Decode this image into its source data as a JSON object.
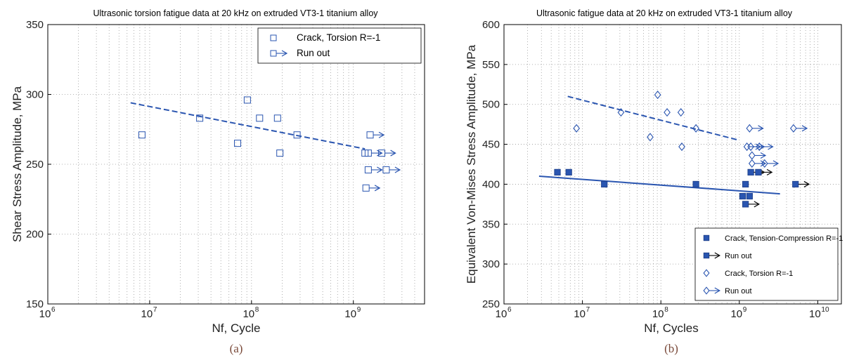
{
  "colors": {
    "series": "#2a55b0",
    "run_arrow_b": "#000000",
    "grid": "#9a9a9a"
  },
  "chart_data": [
    {
      "type": "scatter",
      "panel_label": "(a)",
      "title": "Ultrasonic torsion fatigue data at  20 kHz on extruded VT3-1 titanium alloy",
      "xlabel": "Nf, Cycle",
      "ylabel": "Shear Stress Amplitude, MPa",
      "x_scale": "log",
      "xlim": [
        1000000,
        5000000000
      ],
      "ylim": [
        150,
        350
      ],
      "x_ticks": [
        {
          "base": "10",
          "exp": "6",
          "value": 1000000
        },
        {
          "base": "10",
          "exp": "7",
          "value": 10000000
        },
        {
          "base": "10",
          "exp": "8",
          "value": 100000000
        },
        {
          "base": "10",
          "exp": "9",
          "value": 1000000000
        }
      ],
      "y_ticks": [
        "150",
        "200",
        "250",
        "300",
        "350"
      ],
      "grid_x_minor": true,
      "legend_position": "top-right",
      "legend": [
        {
          "label": "Crack, Torsion R=-1",
          "marker": "square-open"
        },
        {
          "label": "Run out",
          "marker": "square-open-arrow"
        }
      ],
      "series": [
        {
          "name": "Crack, Torsion R=-1",
          "marker": "square-open",
          "points": [
            {
              "x": 8400000,
              "y": 271
            },
            {
              "x": 31000000,
              "y": 283
            },
            {
              "x": 73000000,
              "y": 265
            },
            {
              "x": 91000000,
              "y": 296
            },
            {
              "x": 120000000,
              "y": 283
            },
            {
              "x": 180000000,
              "y": 283
            },
            {
              "x": 190000000,
              "y": 258
            },
            {
              "x": 280000000,
              "y": 271
            },
            {
              "x": 1300000000,
              "y": 258
            }
          ]
        },
        {
          "name": "Run out",
          "marker": "square-open-arrow",
          "points": [
            {
              "x": 1330000000,
              "y": 233
            },
            {
              "x": 1400000000,
              "y": 246
            },
            {
              "x": 1400000000,
              "y": 258
            },
            {
              "x": 1460000000,
              "y": 271
            },
            {
              "x": 1900000000,
              "y": 258
            },
            {
              "x": 2100000000,
              "y": 246
            }
          ]
        }
      ],
      "trend_lines": [
        {
          "style": "dashed",
          "from": {
            "x": 6500000,
            "y": 294
          },
          "to": {
            "x": 1300000000,
            "y": 261
          }
        }
      ]
    },
    {
      "type": "scatter",
      "panel_label": "(b)",
      "title": "Ultrasonic fatigue data at 20 kHz on extruded VT3-1 titanium alloy",
      "xlabel": "Nf, Cycles",
      "ylabel": "Equivalent Von-Mises Stress Amplitude, MPa",
      "x_scale": "log",
      "xlim": [
        1000000,
        20000000000
      ],
      "ylim": [
        250,
        600
      ],
      "x_ticks": [
        {
          "base": "10",
          "exp": "6",
          "value": 1000000
        },
        {
          "base": "10",
          "exp": "7",
          "value": 10000000
        },
        {
          "base": "10",
          "exp": "8",
          "value": 100000000
        },
        {
          "base": "10",
          "exp": "9",
          "value": 1000000000
        },
        {
          "base": "10",
          "exp": "10",
          "value": 10000000000
        }
      ],
      "y_ticks": [
        "250",
        "300",
        "350",
        "400",
        "450",
        "500",
        "550",
        "600"
      ],
      "grid_x_minor": true,
      "legend_position": "bottom-right",
      "legend": [
        {
          "label": "Crack, Tension-Compression R=-1",
          "marker": "square-filled"
        },
        {
          "label": "Run out",
          "marker": "square-filled-arrow"
        },
        {
          "label": "Crack, Torsion R=-1",
          "marker": "diamond-open"
        },
        {
          "label": "Run out",
          "marker": "diamond-open-arrow"
        }
      ],
      "series": [
        {
          "name": "Crack, Tension-Compression R=-1",
          "marker": "square-filled",
          "points": [
            {
              "x": 4800000,
              "y": 415
            },
            {
              "x": 6700000,
              "y": 415
            },
            {
              "x": 19000000,
              "y": 400
            },
            {
              "x": 280000000,
              "y": 400
            },
            {
              "x": 1100000000,
              "y": 385
            },
            {
              "x": 1200000000,
              "y": 400
            },
            {
              "x": 1350000000,
              "y": 385
            }
          ]
        },
        {
          "name": "Run out",
          "marker": "square-filled-arrow",
          "points": [
            {
              "x": 1200000000,
              "y": 375
            },
            {
              "x": 1400000000,
              "y": 415
            },
            {
              "x": 1750000000,
              "y": 415
            },
            {
              "x": 5200000000,
              "y": 400
            }
          ]
        },
        {
          "name": "Crack, Torsion R=-1",
          "marker": "diamond-open",
          "points": [
            {
              "x": 8400000,
              "y": 470
            },
            {
              "x": 31000000,
              "y": 490
            },
            {
              "x": 73000000,
              "y": 459
            },
            {
              "x": 91000000,
              "y": 512
            },
            {
              "x": 120000000,
              "y": 490
            },
            {
              "x": 180000000,
              "y": 490
            },
            {
              "x": 185000000,
              "y": 447
            },
            {
              "x": 280000000,
              "y": 470
            }
          ]
        },
        {
          "name": "Run out",
          "marker": "diamond-open-arrow",
          "points": [
            {
              "x": 1250000000,
              "y": 447
            },
            {
              "x": 1350000000,
              "y": 470
            },
            {
              "x": 1400000000,
              "y": 447
            },
            {
              "x": 1450000000,
              "y": 436
            },
            {
              "x": 1450000000,
              "y": 426
            },
            {
              "x": 1800000000,
              "y": 447
            },
            {
              "x": 2100000000,
              "y": 426
            },
            {
              "x": 4900000000,
              "y": 470
            }
          ]
        }
      ],
      "trend_lines": [
        {
          "style": "dashed",
          "from": {
            "x": 6500000,
            "y": 510
          },
          "to": {
            "x": 1000000000,
            "y": 455
          }
        },
        {
          "style": "solid",
          "from": {
            "x": 2800000,
            "y": 410
          },
          "to": {
            "x": 3300000000,
            "y": 388
          }
        }
      ]
    }
  ]
}
